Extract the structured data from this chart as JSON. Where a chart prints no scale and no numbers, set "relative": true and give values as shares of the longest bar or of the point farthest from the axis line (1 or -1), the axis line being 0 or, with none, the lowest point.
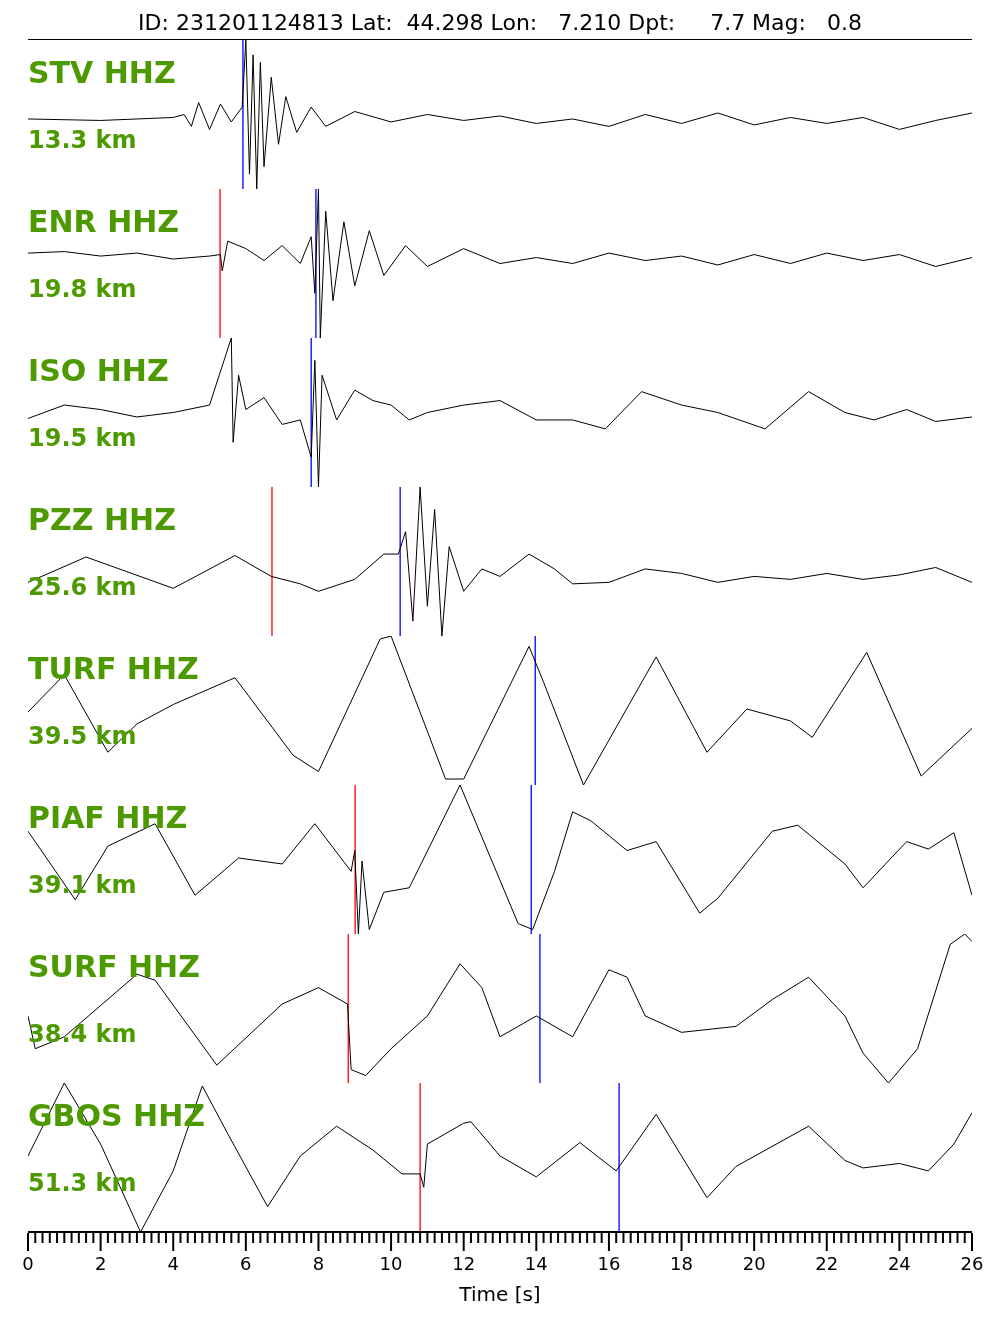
{
  "chart_data": [
    {
      "type": "line",
      "title": "ID: 231201124813 Lat:  44.298 Lon:   7.210 Dpt:     7.7 Mag:   0.8",
      "annotations": [
        "STV HHZ",
        "13.3 km"
      ],
      "relative": true,
      "xlim": [
        0,
        26
      ],
      "tick_labels": false,
      "x": [
        0,
        2,
        4,
        4.3,
        4.5,
        4.7,
        5.0,
        5.3,
        5.6,
        5.9,
        6.0,
        6.1,
        6.2,
        6.3,
        6.4,
        6.5,
        6.7,
        6.9,
        7.1,
        7.4,
        7.8,
        8.2,
        9,
        10,
        11,
        12,
        13,
        14,
        15,
        16,
        17,
        18,
        19,
        20,
        21,
        22,
        23,
        24,
        25,
        26
      ],
      "series": [
        {
          "color": "#000000",
          "values": [
            0.47,
            0.46,
            0.48,
            0.5,
            0.42,
            0.58,
            0.4,
            0.57,
            0.45,
            0.55,
            1.0,
            0.1,
            0.9,
            0.0,
            0.85,
            0.15,
            0.75,
            0.3,
            0.62,
            0.38,
            0.55,
            0.42,
            0.52,
            0.45,
            0.5,
            0.46,
            0.49,
            0.44,
            0.47,
            0.42,
            0.5,
            0.44,
            0.51,
            0.43,
            0.48,
            0.44,
            0.48,
            0.4,
            0.46,
            0.51
          ]
        }
      ],
      "ref_lines": [
        {
          "axis": "x",
          "value": 5.92,
          "color": "#0000ff"
        }
      ]
    },
    {
      "type": "line",
      "annotations": [
        "ENR HHZ",
        "19.8 km"
      ],
      "relative": true,
      "xlim": [
        0,
        26
      ],
      "tick_labels": false,
      "x": [
        0,
        1,
        2,
        3,
        4,
        5,
        5.3,
        5.35,
        5.5,
        6,
        6.5,
        7,
        7.5,
        7.8,
        7.9,
        8.0,
        8.05,
        8.2,
        8.4,
        8.7,
        9,
        9.4,
        9.8,
        10.4,
        11,
        12,
        13,
        14,
        15,
        16,
        17,
        18,
        19,
        20,
        21,
        22,
        23,
        24,
        25,
        26
      ],
      "series": [
        {
          "color": "#000000",
          "values": [
            0.57,
            0.58,
            0.55,
            0.57,
            0.53,
            0.55,
            0.56,
            0.45,
            0.65,
            0.6,
            0.52,
            0.62,
            0.5,
            0.68,
            0.3,
            1.0,
            0.0,
            0.85,
            0.25,
            0.78,
            0.35,
            0.72,
            0.42,
            0.62,
            0.48,
            0.6,
            0.5,
            0.54,
            0.5,
            0.57,
            0.52,
            0.55,
            0.49,
            0.56,
            0.5,
            0.57,
            0.52,
            0.56,
            0.48,
            0.54
          ]
        }
      ],
      "ref_lines": [
        {
          "axis": "x",
          "value": 5.29,
          "color": "#ff0000"
        },
        {
          "axis": "x",
          "value": 7.93,
          "color": "#0000ff"
        }
      ]
    },
    {
      "type": "line",
      "annotations": [
        "ISO HHZ",
        "19.5 km"
      ],
      "relative": true,
      "xlim": [
        0,
        26
      ],
      "tick_labels": false,
      "x": [
        0,
        1,
        2,
        3,
        4,
        5,
        5.6,
        5.65,
        5.8,
        6,
        6.5,
        7,
        7.5,
        7.8,
        7.9,
        8.0,
        8.1,
        8.5,
        9,
        9.5,
        10,
        10.5,
        11,
        12,
        13,
        14,
        15,
        15.9,
        16.9,
        18,
        19,
        20.3,
        21.5,
        22.5,
        23.3,
        24.2,
        25,
        26
      ],
      "series": [
        {
          "color": "#000000",
          "values": [
            0.46,
            0.55,
            0.52,
            0.47,
            0.5,
            0.55,
            1.0,
            0.3,
            0.75,
            0.52,
            0.6,
            0.42,
            0.45,
            0.2,
            0.85,
            0.0,
            0.75,
            0.45,
            0.65,
            0.58,
            0.55,
            0.45,
            0.5,
            0.55,
            0.58,
            0.45,
            0.45,
            0.39,
            0.64,
            0.55,
            0.5,
            0.39,
            0.64,
            0.5,
            0.45,
            0.52,
            0.44,
            0.47
          ]
        }
      ],
      "ref_lines": [
        {
          "axis": "x",
          "value": 7.8,
          "color": "#0000ff"
        }
      ]
    },
    {
      "type": "line",
      "annotations": [
        "PZZ HHZ",
        "25.6 km"
      ],
      "relative": true,
      "xlim": [
        0,
        26
      ],
      "tick_labels": false,
      "x": [
        0,
        1.6,
        4,
        5.7,
        6.7,
        7.5,
        8,
        9,
        9.8,
        10.2,
        10.4,
        10.6,
        10.8,
        11,
        11.2,
        11.4,
        11.6,
        12,
        12.5,
        13,
        13.8,
        14.5,
        15,
        16,
        17,
        18,
        19,
        20,
        21,
        22,
        23,
        24,
        25,
        26
      ],
      "series": [
        {
          "color": "#000000",
          "values": [
            0.36,
            0.53,
            0.32,
            0.54,
            0.4,
            0.35,
            0.3,
            0.38,
            0.55,
            0.55,
            0.7,
            0.1,
            1.0,
            0.2,
            0.85,
            0.0,
            0.6,
            0.3,
            0.45,
            0.4,
            0.55,
            0.45,
            0.35,
            0.36,
            0.45,
            0.42,
            0.36,
            0.4,
            0.38,
            0.42,
            0.38,
            0.41,
            0.46,
            0.36
          ]
        }
      ],
      "ref_lines": [
        {
          "axis": "x",
          "value": 6.72,
          "color": "#ff0000"
        },
        {
          "axis": "x",
          "value": 10.25,
          "color": "#0000ff"
        }
      ]
    },
    {
      "type": "line",
      "annotations": [
        "TURF HHZ",
        "39.5 km"
      ],
      "relative": true,
      "xlim": [
        0,
        26
      ],
      "tick_labels": false,
      "x": [
        0,
        1.0,
        2.2,
        3.0,
        4.0,
        5.7,
        7.3,
        8.0,
        9.7,
        10.0,
        11.5,
        12.0,
        13.8,
        14.2,
        15.3,
        17.3,
        18.7,
        19.8,
        21.0,
        21.6,
        23.1,
        24.6,
        26
      ],
      "series": [
        {
          "color": "#000000",
          "values": [
            0.49,
            0.74,
            0.22,
            0.41,
            0.54,
            0.72,
            0.2,
            0.09,
            0.98,
            1.0,
            0.04,
            0.04,
            0.93,
            0.69,
            0.0,
            0.86,
            0.22,
            0.51,
            0.43,
            0.32,
            0.89,
            0.06,
            0.38
          ]
        }
      ],
      "ref_lines": [
        {
          "axis": "x",
          "value": 13.97,
          "color": "#0000ff"
        }
      ]
    },
    {
      "type": "line",
      "annotations": [
        "PIAF HHZ",
        "39.1 km"
      ],
      "relative": true,
      "xlim": [
        0,
        26
      ],
      "tick_labels": false,
      "x": [
        0,
        1.3,
        2.2,
        3.5,
        4.6,
        5.8,
        7.0,
        7.9,
        8.9,
        9.0,
        9.1,
        9.2,
        9.4,
        9.8,
        10.5,
        11.9,
        13.5,
        13.9,
        14.5,
        15.0,
        15.5,
        16.5,
        17.3,
        18.5,
        19.0,
        20.5,
        21.2,
        22.5,
        23.0,
        24.2,
        24.8,
        25.5,
        26
      ],
      "series": [
        {
          "color": "#000000",
          "values": [
            0.69,
            0.23,
            0.59,
            0.74,
            0.26,
            0.51,
            0.47,
            0.74,
            0.42,
            0.56,
            0.0,
            0.49,
            0.03,
            0.28,
            0.31,
            1.0,
            0.07,
            0.03,
            0.42,
            0.82,
            0.76,
            0.56,
            0.62,
            0.14,
            0.24,
            0.69,
            0.73,
            0.47,
            0.31,
            0.62,
            0.57,
            0.68,
            0.26
          ]
        }
      ],
      "ref_lines": [
        {
          "axis": "x",
          "value": 9.01,
          "color": "#ff0000"
        },
        {
          "axis": "x",
          "value": 13.86,
          "color": "#0000ff"
        }
      ]
    },
    {
      "type": "line",
      "annotations": [
        "SURF HHZ",
        "38.4 km"
      ],
      "relative": true,
      "xlim": [
        0,
        26
      ],
      "tick_labels": false,
      "x": [
        0,
        0.2,
        1,
        3.0,
        3.5,
        5.2,
        7.0,
        8.0,
        8.8,
        8.9,
        9.3,
        10.0,
        11.0,
        11.9,
        12.5,
        13.0,
        14.0,
        15.0,
        16.0,
        16.5,
        17.0,
        18.0,
        19.5,
        20.5,
        21.5,
        22.5,
        23.0,
        23.7,
        24.5,
        25.4,
        25.8,
        26
      ],
      "series": [
        {
          "color": "#000000",
          "values": [
            0.45,
            0.23,
            0.31,
            0.73,
            0.69,
            0.12,
            0.53,
            0.64,
            0.53,
            0.09,
            0.05,
            0.23,
            0.45,
            0.8,
            0.64,
            0.31,
            0.45,
            0.31,
            0.76,
            0.71,
            0.45,
            0.34,
            0.38,
            0.56,
            0.71,
            0.45,
            0.2,
            0.0,
            0.23,
            0.93,
            1.0,
            0.95
          ]
        }
      ],
      "ref_lines": [
        {
          "axis": "x",
          "value": 8.82,
          "color": "#ff0000"
        },
        {
          "axis": "x",
          "value": 14.1,
          "color": "#0000ff"
        }
      ]
    },
    {
      "type": "line",
      "annotations": [
        "GBOS HHZ",
        "51.3 km"
      ],
      "relative": true,
      "xlim": [
        0,
        26
      ],
      "xlabel": "Time [s]",
      "xticks": [
        0,
        {
          "value": 0.2,
          "label": null
        },
        {
          "value": 0.4,
          "label": null
        },
        {
          "value": 0.6,
          "label": null
        },
        {
          "value": 0.8,
          "label": null
        },
        {
          "value": 1,
          "label": null
        },
        {
          "value": 1.2,
          "label": null
        },
        {
          "value": 1.4,
          "label": null
        },
        {
          "value": 1.6,
          "label": null
        },
        {
          "value": 1.8,
          "label": null
        },
        2,
        {
          "value": 2.2,
          "label": null
        },
        {
          "value": 2.4,
          "label": null
        },
        {
          "value": 2.6,
          "label": null
        },
        {
          "value": 2.8,
          "label": null
        },
        {
          "value": 3,
          "label": null
        },
        {
          "value": 3.2,
          "label": null
        },
        {
          "value": 3.4,
          "label": null
        },
        {
          "value": 3.6,
          "label": null
        },
        {
          "value": 3.8,
          "label": null
        },
        4,
        {
          "value": 4.2,
          "label": null
        },
        {
          "value": 4.4,
          "label": null
        },
        {
          "value": 4.6,
          "label": null
        },
        {
          "value": 4.8,
          "label": null
        },
        {
          "value": 5,
          "label": null
        },
        {
          "value": 5.2,
          "label": null
        },
        {
          "value": 5.4,
          "label": null
        },
        {
          "value": 5.6,
          "label": null
        },
        {
          "value": 5.8,
          "label": null
        },
        6,
        {
          "value": 6.2,
          "label": null
        },
        {
          "value": 6.4,
          "label": null
        },
        {
          "value": 6.6,
          "label": null
        },
        {
          "value": 6.8,
          "label": null
        },
        {
          "value": 7,
          "label": null
        },
        {
          "value": 7.2,
          "label": null
        },
        {
          "value": 7.4,
          "label": null
        },
        {
          "value": 7.6,
          "label": null
        },
        {
          "value": 7.8,
          "label": null
        },
        8,
        {
          "value": 8.2,
          "label": null
        },
        {
          "value": 8.4,
          "label": null
        },
        {
          "value": 8.6,
          "label": null
        },
        {
          "value": 8.8,
          "label": null
        },
        {
          "value": 9,
          "label": null
        },
        {
          "value": 9.2,
          "label": null
        },
        {
          "value": 9.4,
          "label": null
        },
        {
          "value": 9.6,
          "label": null
        },
        {
          "value": 9.8,
          "label": null
        },
        10,
        {
          "value": 10.2,
          "label": null
        },
        {
          "value": 10.4,
          "label": null
        },
        {
          "value": 10.6,
          "label": null
        },
        {
          "value": 10.8,
          "label": null
        },
        {
          "value": 11,
          "label": null
        },
        {
          "value": 11.2,
          "label": null
        },
        {
          "value": 11.4,
          "label": null
        },
        {
          "value": 11.6,
          "label": null
        },
        {
          "value": 11.8,
          "label": null
        },
        12,
        {
          "value": 12.2,
          "label": null
        },
        {
          "value": 12.4,
          "label": null
        },
        {
          "value": 12.6,
          "label": null
        },
        {
          "value": 12.8,
          "label": null
        },
        {
          "value": 13,
          "label": null
        },
        {
          "value": 13.2,
          "label": null
        },
        {
          "value": 13.4,
          "label": null
        },
        {
          "value": 13.6,
          "label": null
        },
        {
          "value": 13.8,
          "label": null
        },
        14,
        {
          "value": 14.2,
          "label": null
        },
        {
          "value": 14.4,
          "label": null
        },
        {
          "value": 14.6,
          "label": null
        },
        {
          "value": 14.8,
          "label": null
        },
        {
          "value": 15,
          "label": null
        },
        {
          "value": 15.2,
          "label": null
        },
        {
          "value": 15.4,
          "label": null
        },
        {
          "value": 15.6,
          "label": null
        },
        {
          "value": 15.8,
          "label": null
        },
        16,
        {
          "value": 16.2,
          "label": null
        },
        {
          "value": 16.4,
          "label": null
        },
        {
          "value": 16.6,
          "label": null
        },
        {
          "value": 16.8,
          "label": null
        },
        {
          "value": 17,
          "label": null
        },
        {
          "value": 17.2,
          "label": null
        },
        {
          "value": 17.4,
          "label": null
        },
        {
          "value": 17.6,
          "label": null
        },
        {
          "value": 17.8,
          "label": null
        },
        18,
        {
          "value": 18.2,
          "label": null
        },
        {
          "value": 18.4,
          "label": null
        },
        {
          "value": 18.6,
          "label": null
        },
        {
          "value": 18.8,
          "label": null
        },
        {
          "value": 19,
          "label": null
        },
        {
          "value": 19.2,
          "label": null
        },
        {
          "value": 19.4,
          "label": null
        },
        {
          "value": 19.6,
          "label": null
        },
        {
          "value": 19.8,
          "label": null
        },
        20,
        {
          "value": 20.2,
          "label": null
        },
        {
          "value": 20.4,
          "label": null
        },
        {
          "value": 20.6,
          "label": null
        },
        {
          "value": 20.8,
          "label": null
        },
        {
          "value": 21,
          "label": null
        },
        {
          "value": 21.2,
          "label": null
        },
        {
          "value": 21.4,
          "label": null
        },
        {
          "value": 21.6,
          "label": null
        },
        {
          "value": 21.8,
          "label": null
        },
        22,
        {
          "value": 22.2,
          "label": null
        },
        {
          "value": 22.4,
          "label": null
        },
        {
          "value": 22.6,
          "label": null
        },
        {
          "value": 22.8,
          "label": null
        },
        {
          "value": 23,
          "label": null
        },
        {
          "value": 23.2,
          "label": null
        },
        {
          "value": 23.4,
          "label": null
        },
        {
          "value": 23.6,
          "label": null
        },
        {
          "value": 23.8,
          "label": null
        },
        24,
        {
          "value": 24.2,
          "label": null
        },
        {
          "value": 24.4,
          "label": null
        },
        {
          "value": 24.6,
          "label": null
        },
        {
          "value": 24.8,
          "label": null
        },
        {
          "value": 25,
          "label": null
        },
        {
          "value": 25.2,
          "label": null
        },
        {
          "value": 25.4,
          "label": null
        },
        {
          "value": 25.6,
          "label": null
        },
        {
          "value": 25.8,
          "label": null
        },
        26
      ],
      "x": [
        0,
        1.0,
        2.0,
        3.1,
        4.0,
        4.8,
        5.5,
        6.6,
        7.5,
        8.5,
        9.5,
        10.3,
        10.8,
        10.9,
        11.0,
        12.0,
        12.2,
        13.0,
        14.0,
        15.2,
        16.2,
        17.3,
        18.0,
        18.7,
        19.5,
        21.5,
        22.5,
        23.0,
        24.0,
        24.8,
        25.5,
        26
      ],
      "series": [
        {
          "color": "#000000",
          "values": [
            0.51,
            1.0,
            0.59,
            0.0,
            0.41,
            0.98,
            0.66,
            0.17,
            0.51,
            0.71,
            0.55,
            0.39,
            0.39,
            0.3,
            0.59,
            0.73,
            0.74,
            0.51,
            0.37,
            0.6,
            0.41,
            0.79,
            0.51,
            0.23,
            0.44,
            0.71,
            0.48,
            0.43,
            0.46,
            0.41,
            0.59,
            0.8
          ]
        }
      ],
      "ref_lines": [
        {
          "axis": "x",
          "value": 10.8,
          "color": "#ff0000"
        },
        {
          "axis": "x",
          "value": 16.28,
          "color": "#0000ff"
        }
      ]
    }
  ]
}
